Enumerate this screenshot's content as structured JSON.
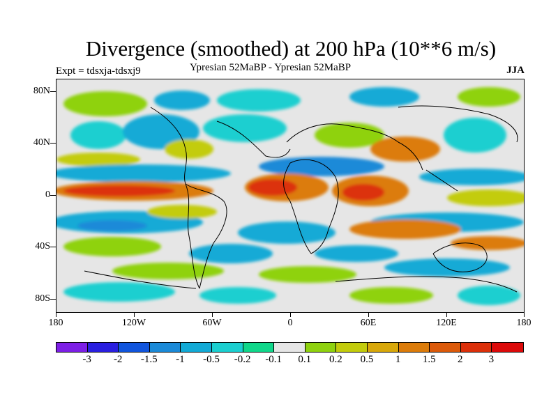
{
  "title": "Divergence (smoothed) at 200 hPa (10**6 m/s)",
  "subtitle": "Ypresian  52MaBP - Ypresian  52MaBP",
  "experiment": "Expt = tdsxja-tdsxj9",
  "season": "JJA",
  "lat_labels": [
    "80N",
    "40N",
    "0",
    "40S",
    "80S"
  ],
  "lon_labels": [
    "180",
    "120W",
    "60W",
    "0",
    "60E",
    "120E",
    "180"
  ],
  "colorbar": {
    "colors": [
      "#7d1fe6",
      "#2a1fe0",
      "#1155dd",
      "#1b8ad8",
      "#12aad6",
      "#1bcfd0",
      "#10d78a",
      "#e6e6e6",
      "#8fd20f",
      "#c3cc0c",
      "#d8a80a",
      "#dc7c0a",
      "#dc5a0a",
      "#dc300a",
      "#dc0a0a"
    ],
    "labels": [
      "-3",
      "-2",
      "-1.5",
      "-1",
      "-0.5",
      "-0.2",
      "-0.1",
      "0.1",
      "0.2",
      "0.5",
      "1",
      "1.5",
      "2",
      "3"
    ]
  }
}
